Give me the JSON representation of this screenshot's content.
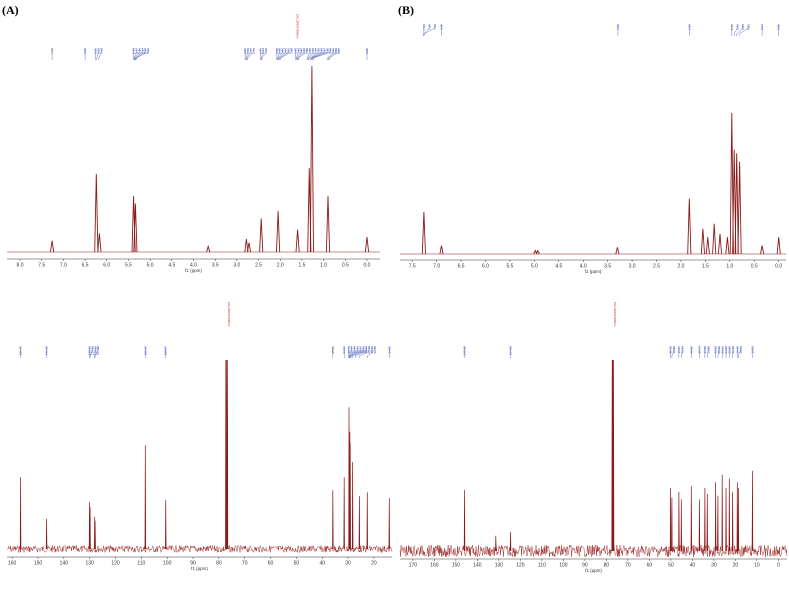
{
  "figure": {
    "panel_labels": [
      "(A)",
      "(B)"
    ]
  },
  "colors": {
    "spectrum": "#8b1a1a",
    "peak_label": "#2a3da8",
    "solvent_label": "#cc1f1f",
    "axis": "#333333",
    "noise": "#9a2020"
  },
  "chart_data": [
    {
      "id": "A-1H",
      "type": "line",
      "xlabel": "f1 (ppm)",
      "x_reversed": true,
      "xlim": [
        8.3,
        -0.3
      ],
      "xticks": [
        "8.0",
        "7.5",
        "7.0",
        "6.5",
        "6.0",
        "5.5",
        "5.0",
        "4.5",
        "4.0",
        "3.5",
        "3.0",
        "2.5",
        "2.0",
        "1.5",
        "1.0",
        "0.5",
        "0.0"
      ],
      "peaks": [
        {
          "x": 7.26,
          "h": 0.06
        },
        {
          "x": 6.24,
          "h": 0.42
        },
        {
          "x": 6.17,
          "h": 0.1
        },
        {
          "x": 5.38,
          "h": 0.3
        },
        {
          "x": 5.34,
          "h": 0.26
        },
        {
          "x": 3.66,
          "h": 0.03
        },
        {
          "x": 2.78,
          "h": 0.07
        },
        {
          "x": 2.72,
          "h": 0.05
        },
        {
          "x": 2.44,
          "h": 0.18
        },
        {
          "x": 2.05,
          "h": 0.22
        },
        {
          "x": 1.6,
          "h": 0.12
        },
        {
          "x": 1.33,
          "h": 0.45
        },
        {
          "x": 1.27,
          "h": 1.0
        },
        {
          "x": 0.9,
          "h": 0.3
        },
        {
          "x": 0.0,
          "h": 0.08
        }
      ],
      "peak_labels": [
        "7.26",
        "6.50",
        "6.26",
        "6.23",
        "6.18",
        "5.38",
        "5.37",
        "5.36",
        "5.34",
        "5.33",
        "5.32",
        "2.81",
        "2.79",
        "2.77",
        "2.75",
        "2.46",
        "2.44",
        "2.42",
        "2.08",
        "2.06",
        "2.05",
        "2.03",
        "2.01",
        "1.99",
        "1.65",
        "1.63",
        "1.61",
        "1.60",
        "1.58",
        "1.38",
        "1.36",
        "1.34",
        "1.30",
        "1.29",
        "1.27",
        "1.25",
        "1.23",
        "0.91",
        "0.89",
        "0.87",
        "0.00"
      ],
      "solvent_label": "CHLOROFORM-d"
    },
    {
      "id": "B-1H",
      "type": "line",
      "xlabel": "f1 (ppm)",
      "x_reversed": true,
      "xlim": [
        7.75,
        -0.15
      ],
      "xticks": [
        "7.5",
        "7.0",
        "6.5",
        "6.0",
        "5.5",
        "5.0",
        "4.5",
        "4.0",
        "3.5",
        "3.0",
        "2.5",
        "2.0",
        "1.5",
        "1.0",
        "0.5",
        "0.0"
      ],
      "peaks": [
        {
          "x": 7.26,
          "h": 0.25
        },
        {
          "x": 6.9,
          "h": 0.05
        },
        {
          "x": 4.98,
          "h": 0.02
        },
        {
          "x": 4.93,
          "h": 0.02
        },
        {
          "x": 3.3,
          "h": 0.04
        },
        {
          "x": 1.83,
          "h": 0.33
        },
        {
          "x": 1.55,
          "h": 0.15
        },
        {
          "x": 1.45,
          "h": 0.1
        },
        {
          "x": 1.32,
          "h": 0.18
        },
        {
          "x": 1.2,
          "h": 0.12
        },
        {
          "x": 1.05,
          "h": 0.1
        },
        {
          "x": 0.96,
          "h": 0.84
        },
        {
          "x": 0.91,
          "h": 0.62
        },
        {
          "x": 0.86,
          "h": 0.6
        },
        {
          "x": 0.8,
          "h": 0.55
        },
        {
          "x": 0.34,
          "h": 0.05
        },
        {
          "x": 0.0,
          "h": 0.1
        }
      ],
      "peak_labels": [
        "7.26",
        "7.26",
        "7.26",
        "6.90",
        "3.29",
        "1.83",
        "0.96",
        "0.91",
        "0.86",
        "0.81",
        "0.34",
        "0.00"
      ]
    },
    {
      "id": "A-13C",
      "type": "line",
      "xlabel": "f1 (ppm)",
      "x_reversed": true,
      "xlim": [
        162,
        13
      ],
      "xticks": [
        "160",
        "150",
        "140",
        "130",
        "120",
        "110",
        "100",
        "90",
        "80",
        "70",
        "60",
        "50",
        "40",
        "30",
        "20"
      ],
      "peaks": [
        {
          "x": 156.75,
          "h": 0.38
        },
        {
          "x": 146.69,
          "h": 0.16
        },
        {
          "x": 130.06,
          "h": 0.25
        },
        {
          "x": 129.85,
          "h": 0.22
        },
        {
          "x": 128.06,
          "h": 0.17
        },
        {
          "x": 127.9,
          "h": 0.15
        },
        {
          "x": 108.46,
          "h": 0.55
        },
        {
          "x": 100.57,
          "h": 0.26
        },
        {
          "x": 77.31,
          "h": 1.0
        },
        {
          "x": 77.0,
          "h": 1.0
        },
        {
          "x": 76.68,
          "h": 1.0
        },
        {
          "x": 35.91,
          "h": 0.31
        },
        {
          "x": 31.51,
          "h": 0.38
        },
        {
          "x": 29.64,
          "h": 0.75
        },
        {
          "x": 29.31,
          "h": 0.62
        },
        {
          "x": 29.17,
          "h": 0.56
        },
        {
          "x": 28.23,
          "h": 0.46
        },
        {
          "x": 25.62,
          "h": 0.28
        },
        {
          "x": 22.56,
          "h": 0.3
        },
        {
          "x": 14.05,
          "h": 0.27
        }
      ],
      "peak_labels": [
        "156.75",
        "146.69",
        "130.06",
        "129.85",
        "128.06",
        "127.90",
        "108.46",
        "100.57",
        "35.91",
        "31.51",
        "29.70",
        "29.64",
        "29.48",
        "29.31",
        "29.17",
        "28.83",
        "28.23",
        "27.19",
        "25.62",
        "22.56",
        "14.05"
      ],
      "solvent_label": "CHLOROFORM-d"
    },
    {
      "id": "B-13C",
      "type": "line",
      "xlabel": "f1 (ppm)",
      "x_reversed": true,
      "xlim": [
        176,
        -4
      ],
      "xticks": [
        "170",
        "160",
        "150",
        "140",
        "130",
        "120",
        "110",
        "100",
        "90",
        "80",
        "70",
        "60",
        "50",
        "40",
        "30",
        "20",
        "10",
        "0"
      ],
      "peaks": [
        {
          "x": 145.98,
          "h": 0.32
        },
        {
          "x": 131.44,
          "h": 0.08
        },
        {
          "x": 124.58,
          "h": 0.1
        },
        {
          "x": 77.31,
          "h": 1.0
        },
        {
          "x": 77.0,
          "h": 1.0
        },
        {
          "x": 76.68,
          "h": 1.0
        },
        {
          "x": 50.15,
          "h": 0.33
        },
        {
          "x": 49.55,
          "h": 0.28
        },
        {
          "x": 46.27,
          "h": 0.31
        },
        {
          "x": 45.14,
          "h": 0.27
        },
        {
          "x": 40.5,
          "h": 0.34
        },
        {
          "x": 36.74,
          "h": 0.27
        },
        {
          "x": 34.2,
          "h": 0.33
        },
        {
          "x": 33.08,
          "h": 0.3
        },
        {
          "x": 29.2,
          "h": 0.36
        },
        {
          "x": 28.15,
          "h": 0.29
        },
        {
          "x": 26.12,
          "h": 0.4
        },
        {
          "x": 24.36,
          "h": 0.33
        },
        {
          "x": 22.83,
          "h": 0.38
        },
        {
          "x": 21.3,
          "h": 0.31
        },
        {
          "x": 19.1,
          "h": 0.36
        },
        {
          "x": 18.62,
          "h": 0.33
        },
        {
          "x": 12.05,
          "h": 0.42
        }
      ],
      "peak_labels": [
        "145.98",
        "124.58",
        "50.15",
        "49.55",
        "46.27",
        "45.14",
        "40.50",
        "36.74",
        "34.20",
        "33.08",
        "29.20",
        "28.15",
        "26.12",
        "24.36",
        "22.83",
        "21.30",
        "19.10",
        "18.62",
        "12.05"
      ],
      "solvent_label": "CHLOROFORM-d"
    }
  ]
}
